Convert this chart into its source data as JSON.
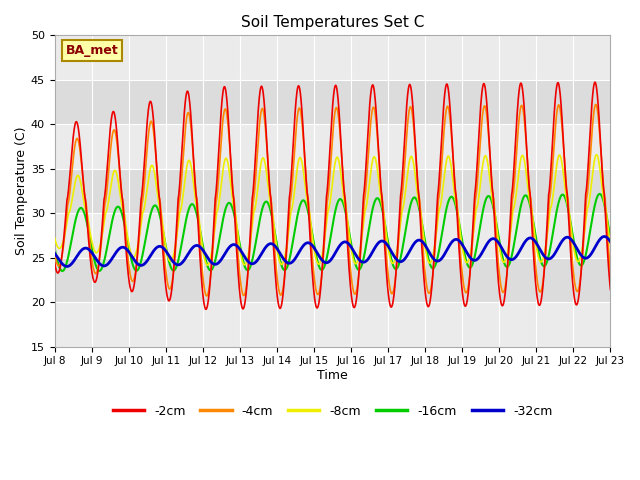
{
  "title": "Soil Temperatures Set C",
  "xlabel": "Time",
  "ylabel": "Soil Temperature (C)",
  "ylim": [
    15,
    50
  ],
  "yticks": [
    15,
    20,
    25,
    30,
    35,
    40,
    45,
    50
  ],
  "x_labels": [
    "Jul 8",
    "Jul 9",
    "Jul 10",
    "Jul 11",
    "Jul 12",
    "Jul 13",
    "Jul 14",
    "Jul 15",
    "Jul 16",
    "Jul 17",
    "Jul 18",
    "Jul 19",
    "Jul 20",
    "Jul 21",
    "Jul 22",
    "Jul 23"
  ],
  "annotation_text": "BA_met",
  "series": {
    "-2cm": {
      "color": "#ee0000",
      "linewidth": 1.2
    },
    "-4cm": {
      "color": "#ff8800",
      "linewidth": 1.2
    },
    "-8cm": {
      "color": "#eeee00",
      "linewidth": 1.2
    },
    "-16cm": {
      "color": "#00cc00",
      "linewidth": 1.5
    },
    "-32cm": {
      "color": "#0000cc",
      "linewidth": 2.0
    }
  },
  "legend_order": [
    "-2cm",
    "-4cm",
    "-8cm",
    "-16cm",
    "-32cm"
  ],
  "bg_band_color_dark": "#dcdcdc",
  "bg_band_color_light": "#ebebeb",
  "plot_bg_color": "#f5f5f5"
}
